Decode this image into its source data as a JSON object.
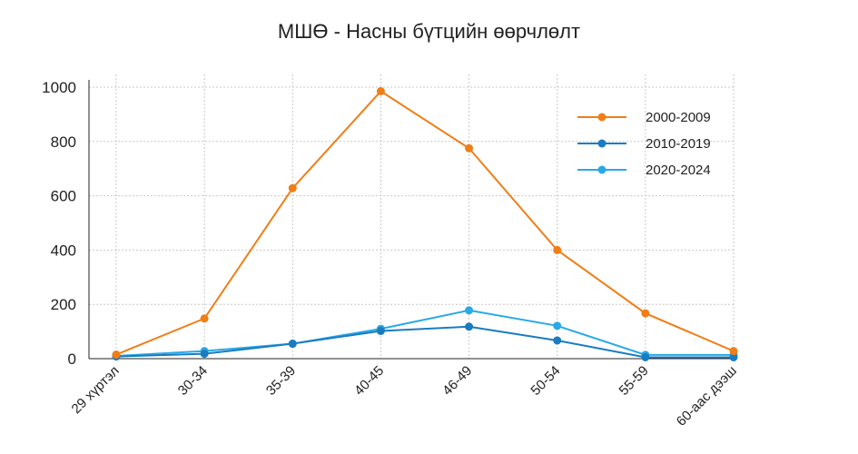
{
  "chart_data": {
    "type": "line",
    "title": "МШӨ - Насны бүтцийн өөрчлөлт",
    "xlabel": "",
    "ylabel": "",
    "categories": [
      "29 хүртэл",
      "30-34",
      "35-39",
      "40-45",
      "46-49",
      "50-54",
      "55-59",
      "60-аас дээш"
    ],
    "ylim": [
      0,
      1000
    ],
    "yticks": [
      0,
      200,
      400,
      600,
      800,
      1000
    ],
    "grid": true,
    "legend_position": "top-right",
    "series": [
      {
        "name": "2000-2009",
        "color": "#f07e16",
        "values": [
          15,
          148,
          628,
          985,
          775,
          400,
          167,
          28
        ]
      },
      {
        "name": "2010-2019",
        "color": "#1a7cc0",
        "values": [
          8,
          18,
          55,
          102,
          118,
          67,
          5,
          5
        ]
      },
      {
        "name": "2020-2024",
        "color": "#29a9e6",
        "values": [
          10,
          28,
          55,
          110,
          178,
          121,
          14,
          14
        ]
      }
    ]
  }
}
